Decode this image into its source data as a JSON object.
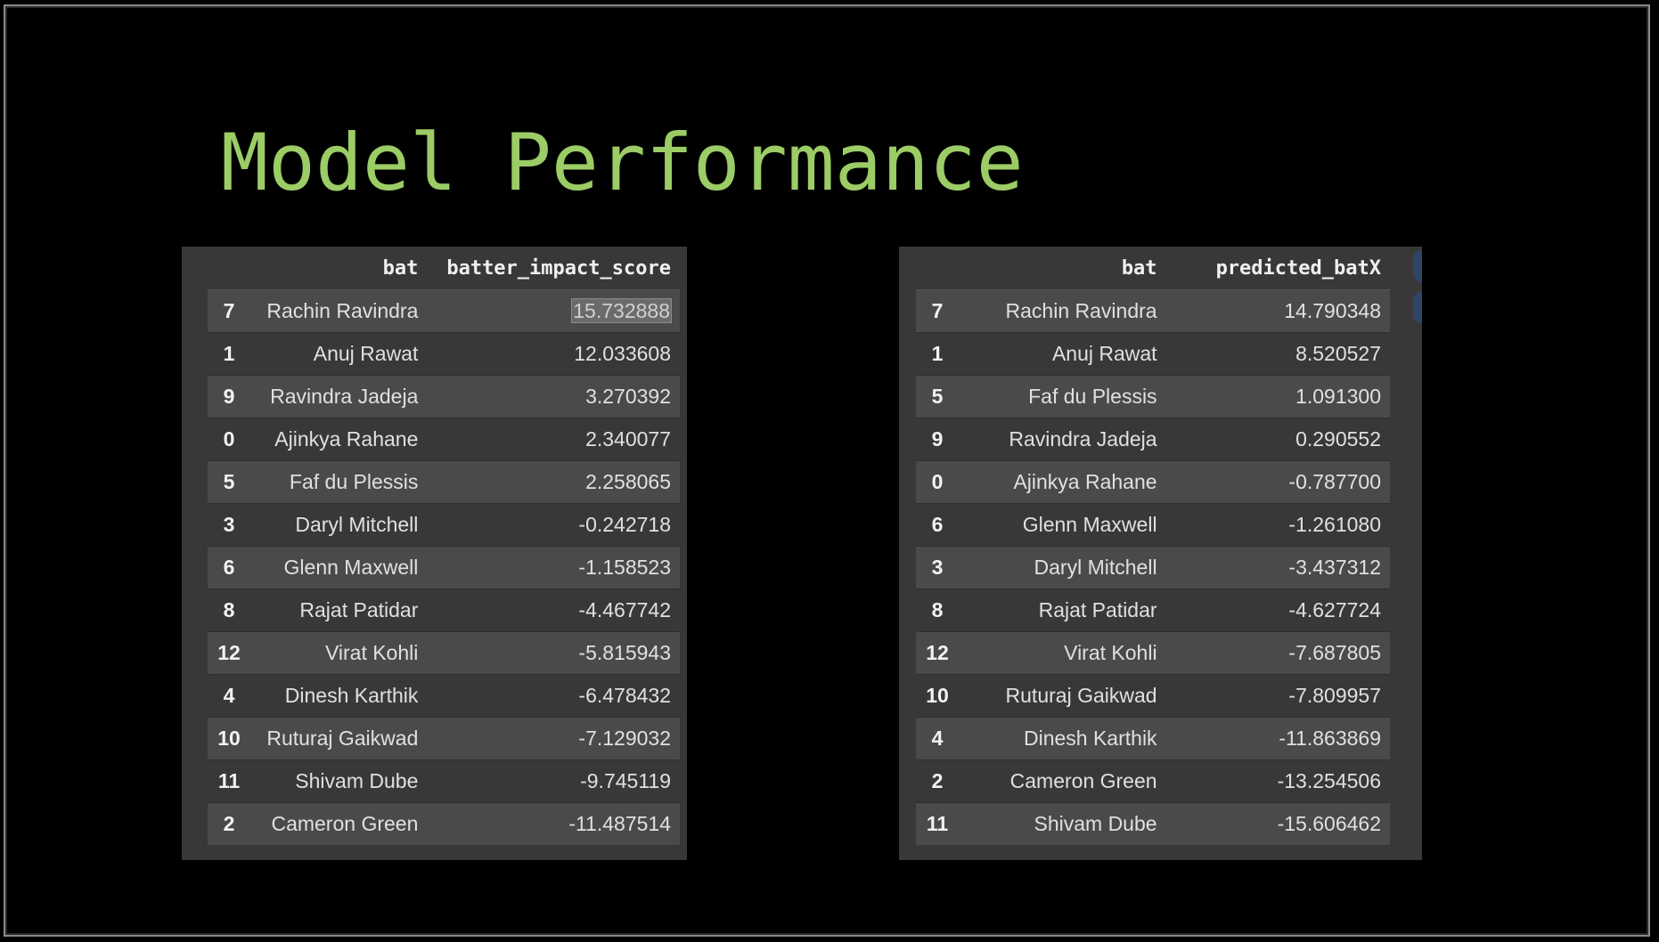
{
  "slide": {
    "title": "Model Performance"
  },
  "left_table": {
    "columns": [
      "",
      "bat",
      "batter_impact_score"
    ],
    "rows": [
      {
        "index": "7",
        "bat": "Rachin Ravindra",
        "value": "15.732888"
      },
      {
        "index": "1",
        "bat": "Anuj Rawat",
        "value": "12.033608"
      },
      {
        "index": "9",
        "bat": "Ravindra Jadeja",
        "value": "3.270392"
      },
      {
        "index": "0",
        "bat": "Ajinkya Rahane",
        "value": "2.340077"
      },
      {
        "index": "5",
        "bat": "Faf du Plessis",
        "value": "2.258065"
      },
      {
        "index": "3",
        "bat": "Daryl Mitchell",
        "value": "-0.242718"
      },
      {
        "index": "6",
        "bat": "Glenn Maxwell",
        "value": "-1.158523"
      },
      {
        "index": "8",
        "bat": "Rajat Patidar",
        "value": "-4.467742"
      },
      {
        "index": "12",
        "bat": "Virat Kohli",
        "value": "-5.815943"
      },
      {
        "index": "4",
        "bat": "Dinesh Karthik",
        "value": "-6.478432"
      },
      {
        "index": "10",
        "bat": "Ruturaj Gaikwad",
        "value": "-7.129032"
      },
      {
        "index": "11",
        "bat": "Shivam Dube",
        "value": "-9.745119"
      },
      {
        "index": "2",
        "bat": "Cameron Green",
        "value": "-11.487514"
      }
    ]
  },
  "right_table": {
    "columns": [
      "",
      "bat",
      "predicted_batX"
    ],
    "rows": [
      {
        "index": "7",
        "bat": "Rachin Ravindra",
        "value": "14.790348"
      },
      {
        "index": "1",
        "bat": "Anuj Rawat",
        "value": "8.520527"
      },
      {
        "index": "5",
        "bat": "Faf du Plessis",
        "value": "1.091300"
      },
      {
        "index": "9",
        "bat": "Ravindra Jadeja",
        "value": "0.290552"
      },
      {
        "index": "0",
        "bat": "Ajinkya Rahane",
        "value": "-0.787700"
      },
      {
        "index": "6",
        "bat": "Glenn Maxwell",
        "value": "-1.261080"
      },
      {
        "index": "3",
        "bat": "Daryl Mitchell",
        "value": "-3.437312"
      },
      {
        "index": "8",
        "bat": "Rajat Patidar",
        "value": "-4.627724"
      },
      {
        "index": "12",
        "bat": "Virat Kohli",
        "value": "-7.687805"
      },
      {
        "index": "10",
        "bat": "Ruturaj Gaikwad",
        "value": "-7.809957"
      },
      {
        "index": "4",
        "bat": "Dinesh Karthik",
        "value": "-11.863869"
      },
      {
        "index": "2",
        "bat": "Cameron Green",
        "value": "-13.254506"
      },
      {
        "index": "11",
        "bat": "Shivam Dube",
        "value": "-15.606462"
      }
    ]
  },
  "colors": {
    "title": "#9ccc65",
    "background": "#000000",
    "panel": "#383838",
    "row_stripe": "#4a4a4a"
  }
}
